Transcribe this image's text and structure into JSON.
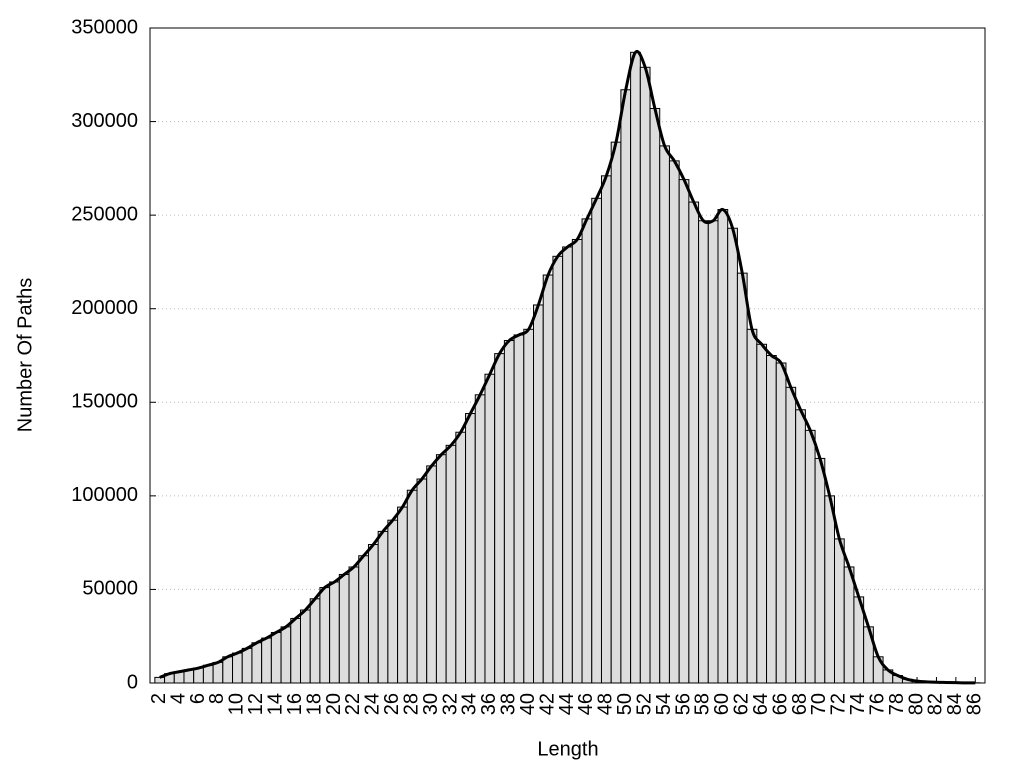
{
  "chart_data": {
    "type": "bar",
    "x_label": "Length",
    "y_label": "Number Of Paths",
    "x": [
      2,
      3,
      4,
      5,
      6,
      7,
      8,
      9,
      10,
      11,
      12,
      13,
      14,
      15,
      16,
      17,
      18,
      19,
      20,
      21,
      22,
      23,
      24,
      25,
      26,
      27,
      28,
      29,
      30,
      31,
      32,
      33,
      34,
      35,
      36,
      37,
      38,
      39,
      40,
      41,
      42,
      43,
      44,
      45,
      46,
      47,
      48,
      49,
      50,
      51,
      52,
      53,
      54,
      55,
      56,
      57,
      58,
      59,
      60,
      61,
      62,
      63,
      64,
      65,
      66,
      67,
      68,
      69,
      70,
      71,
      72,
      73,
      74,
      75,
      76,
      77,
      78,
      79,
      80,
      81,
      82,
      83,
      84,
      85,
      86
    ],
    "values": [
      3000,
      5000,
      6000,
      7000,
      8000,
      9500,
      11000,
      14000,
      16000,
      18500,
      21500,
      24000,
      27000,
      30000,
      34500,
      39000,
      45000,
      51000,
      54000,
      58000,
      62000,
      68000,
      74000,
      81000,
      87000,
      94000,
      103000,
      109000,
      116000,
      122000,
      127000,
      134000,
      144000,
      154000,
      165000,
      176000,
      183000,
      186000,
      189000,
      202000,
      218000,
      228000,
      233000,
      237000,
      248000,
      259000,
      271000,
      289000,
      317000,
      337000,
      329000,
      307000,
      287000,
      279000,
      269000,
      257000,
      247000,
      247000,
      253000,
      243000,
      219000,
      189000,
      181000,
      175000,
      171000,
      158000,
      146000,
      135000,
      120000,
      100000,
      77000,
      62000,
      46000,
      30000,
      14000,
      7000,
      4000,
      2000,
      1000,
      600,
      400,
      300,
      200,
      100,
      100
    ],
    "color": "#dddddd",
    "line_color": "#000000",
    "smooth_line": true,
    "xlim": [
      1,
      87
    ],
    "ylim": [
      0,
      350000
    ],
    "xticks": [
      2,
      4,
      6,
      8,
      10,
      12,
      14,
      16,
      18,
      20,
      22,
      24,
      26,
      28,
      30,
      32,
      34,
      36,
      38,
      40,
      42,
      44,
      46,
      48,
      50,
      52,
      54,
      56,
      58,
      60,
      62,
      64,
      66,
      68,
      70,
      72,
      74,
      76,
      78,
      80,
      82,
      84,
      86
    ],
    "yticks": [
      0,
      50000,
      100000,
      150000,
      200000,
      250000,
      300000,
      350000
    ],
    "grid": true
  }
}
